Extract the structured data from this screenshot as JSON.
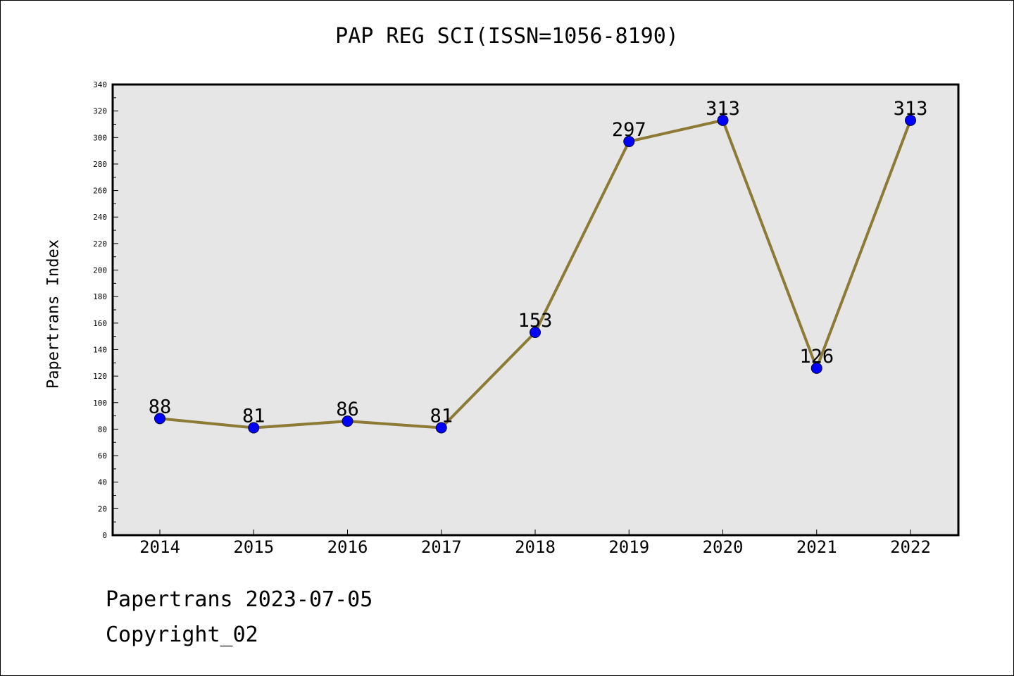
{
  "chart_data": {
    "type": "line",
    "title": "PAP REG SCI(ISSN=1056-8190)",
    "xlabel": "",
    "ylabel": "Papertrans Index",
    "categories": [
      "2014",
      "2015",
      "2016",
      "2017",
      "2018",
      "2019",
      "2020",
      "2021",
      "2022"
    ],
    "series": [
      {
        "values": [
          88,
          81,
          86,
          81,
          153,
          297,
          313,
          126,
          313
        ]
      }
    ],
    "ylim": [
      0,
      340
    ],
    "yticks": [
      0,
      20,
      40,
      60,
      80,
      100,
      120,
      140,
      160,
      180,
      200,
      220,
      240,
      260,
      280,
      300,
      320,
      340
    ],
    "data_labels": true,
    "grid": false,
    "legend": "none",
    "colors": {
      "line": "#8c7a35",
      "marker": "#0000ff",
      "plot_background": "#e6e6e6"
    }
  },
  "footer": {
    "source_line": "Papertrans 2023-07-05",
    "copyright_line": "Copyright_02"
  }
}
